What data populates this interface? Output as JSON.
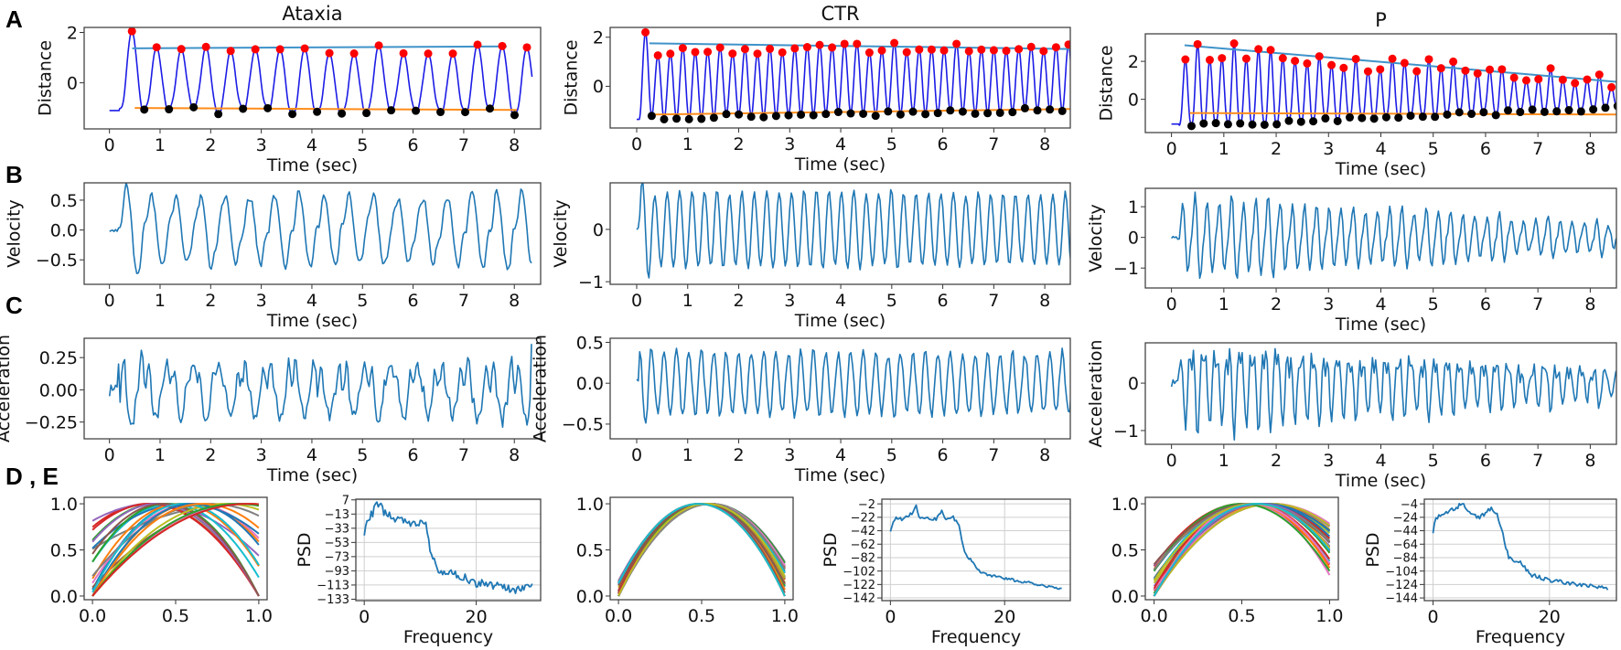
{
  "figure": {
    "panel_letters": {
      "A": "A",
      "B": "B",
      "C": "C",
      "DE": "D , E"
    }
  },
  "chart_data": [
    {
      "title": "Ataxia",
      "distance": {
        "type": "line",
        "xlabel": "Time (sec)",
        "ylabel": "Distance",
        "xlim": [
          -0.5,
          8.52
        ],
        "ylim": [
          -1.83,
          2.2
        ],
        "xticks": [
          0,
          1,
          2,
          3,
          4,
          5,
          6,
          7,
          8
        ],
        "xtick_labels": [
          "0",
          "1",
          "2",
          "3",
          "4",
          "5",
          "6",
          "7",
          "8"
        ],
        "yticks": [
          0,
          2
        ],
        "ytick_labels": [
          "0",
          "2"
        ],
        "signal": {
          "duration": 8.35,
          "onset": 0.2,
          "frequency": 2.05,
          "baseline": -1.1,
          "first_peak": 2.05,
          "peak": [
            1.4,
            1.35
          ],
          "peak_jitter": 0.22,
          "trough": [
            -1.1,
            -1.15
          ],
          "trough_jitter": 0.15,
          "shape": 1.3,
          "ripple": 0.08
        },
        "trend_upper": {
          "t": [
            0.45,
            7.85
          ],
          "y": [
            1.37,
            1.45
          ]
        },
        "trend_lower": {
          "t": [
            0.5,
            8.05
          ],
          "y": [
            -1.0,
            -1.08
          ]
        }
      },
      "velocity": {
        "type": "line",
        "xlabel": "Time (sec)",
        "ylabel": "Velocity",
        "xlim": [
          -0.5,
          8.52
        ],
        "ylim": [
          -0.91,
          0.79
        ],
        "xticks": [
          0,
          1,
          2,
          3,
          4,
          5,
          6,
          7,
          8
        ],
        "xtick_labels": [
          "0",
          "1",
          "2",
          "3",
          "4",
          "5",
          "6",
          "7",
          "8"
        ],
        "yticks": [
          -0.5,
          0,
          0.5
        ],
        "ytick_labels": [
          "−0.5",
          "0.0",
          "0.5"
        ],
        "peak_abs": 0.8,
        "noise": 0.04
      },
      "acceleration": {
        "type": "line",
        "xlabel": "Time (sec)",
        "ylabel": "Acceleration",
        "xlim": [
          -0.5,
          8.52
        ],
        "ylim": [
          -0.38,
          0.4
        ],
        "xticks": [
          0,
          1,
          2,
          3,
          4,
          5,
          6,
          7,
          8
        ],
        "xtick_labels": [
          "0",
          "1",
          "2",
          "3",
          "4",
          "5",
          "6",
          "7",
          "8"
        ],
        "yticks": [
          -0.25,
          0,
          0.25
        ],
        "ytick_labels": [
          "−0.25",
          "0.00",
          "0.25"
        ],
        "peak_abs": 0.36,
        "noise": 0.05
      },
      "mode_curves": {
        "type": "line",
        "xlim": [
          -0.05,
          1.05
        ],
        "ylim": [
          -0.04,
          1.07
        ],
        "xticks": [
          0,
          0.5,
          1
        ],
        "xtick_labels": [
          "0.0",
          "0.5",
          "1.0"
        ],
        "yticks": [
          0,
          0.5,
          1
        ],
        "ytick_labels": [
          "0.0",
          "0.5",
          "1.0"
        ],
        "count": 24,
        "center_range": [
          0.3,
          1.0
        ],
        "curvature_range": [
          0.6,
          4.0
        ]
      },
      "psd": {
        "type": "line",
        "xlabel": "Frequency",
        "ylabel": "PSD",
        "grid": true,
        "xlim": [
          -1.5,
          31.5
        ],
        "ylim": [
          -135,
          8
        ],
        "xticks": [
          0,
          20
        ],
        "xtick_labels": [
          "0",
          "20"
        ],
        "yticks": [
          7,
          -13,
          -33,
          -53,
          -73,
          -93,
          -113,
          -133
        ],
        "ytick_labels": [
          "7",
          "−13",
          "−33",
          "−53",
          "−73",
          "−93",
          "−113",
          "−133"
        ],
        "points": [
          [
            0,
            -40
          ],
          [
            0.5,
            -25
          ],
          [
            1,
            -18
          ],
          [
            2.5,
            3
          ],
          [
            4,
            -15
          ],
          [
            6,
            -20
          ],
          [
            8,
            -25
          ],
          [
            10,
            -25
          ],
          [
            11,
            -30
          ],
          [
            11.7,
            -60
          ],
          [
            12.3,
            -75
          ],
          [
            13,
            -95
          ],
          [
            16,
            -95
          ],
          [
            20,
            -110
          ],
          [
            24,
            -115
          ],
          [
            27,
            -120
          ],
          [
            30,
            -115
          ]
        ],
        "noise": 6
      }
    },
    {
      "title": "CTR",
      "distance": {
        "type": "line",
        "xlabel": "Time (sec)",
        "ylabel": "Distance",
        "xlim": [
          -0.52,
          8.5
        ],
        "ylim": [
          -1.7,
          2.4
        ],
        "xticks": [
          0,
          1,
          2,
          3,
          4,
          5,
          6,
          7,
          8
        ],
        "xtick_labels": [
          "0",
          "1",
          "2",
          "3",
          "4",
          "5",
          "6",
          "7",
          "8"
        ],
        "yticks": [
          0,
          2
        ],
        "ytick_labels": [
          "0",
          "2"
        ],
        "signal": {
          "duration": 8.6,
          "onset": 0.05,
          "frequency": 4.1,
          "baseline": -1.35,
          "first_peak": 2.2,
          "peak": [
            1.45,
            1.65
          ],
          "peak_jitter": 0.2,
          "trough": [
            -1.3,
            -0.95
          ],
          "trough_jitter": 0.1,
          "shape": 1.0,
          "ripple": 0
        },
        "trend_upper": {
          "t": [
            0.25,
            8.5
          ],
          "y": [
            1.75,
            1.52
          ]
        },
        "trend_lower": {
          "t": [
            0.35,
            8.5
          ],
          "y": [
            -1.15,
            -0.93
          ]
        }
      },
      "velocity": {
        "type": "line",
        "xlabel": "Time (sec)",
        "ylabel": "Velocity",
        "xlim": [
          -0.52,
          8.5
        ],
        "ylim": [
          -1.05,
          0.89
        ],
        "xticks": [
          0,
          1,
          2,
          3,
          4,
          5,
          6,
          7,
          8
        ],
        "xtick_labels": [
          "0",
          "1",
          "2",
          "3",
          "4",
          "5",
          "6",
          "7",
          "8"
        ],
        "yticks": [
          -1,
          0
        ],
        "ytick_labels": [
          "−1",
          "0"
        ],
        "peak_abs": 0.95,
        "noise": 0.03
      },
      "acceleration": {
        "type": "line",
        "xlabel": "Time (sec)",
        "ylabel": "Acceleration",
        "xlim": [
          -0.52,
          8.5
        ],
        "ylim": [
          -0.68,
          0.55
        ],
        "xticks": [
          0,
          1,
          2,
          3,
          4,
          5,
          6,
          7,
          8
        ],
        "xtick_labels": [
          "0",
          "1",
          "2",
          "3",
          "4",
          "5",
          "6",
          "7",
          "8"
        ],
        "yticks": [
          -0.5,
          0,
          0.5
        ],
        "ytick_labels": [
          "−0.5",
          "0.0",
          "0.5"
        ],
        "peak_abs": 0.5,
        "noise": 0.05
      },
      "mode_curves": {
        "type": "line",
        "xlim": [
          -0.05,
          1.05
        ],
        "ylim": [
          -0.04,
          1.07
        ],
        "xticks": [
          0,
          0.5,
          1
        ],
        "xtick_labels": [
          "0.0",
          "0.5",
          "1.0"
        ],
        "yticks": [
          0,
          0.5,
          1
        ],
        "ytick_labels": [
          "0.0",
          "0.5",
          "1.0"
        ],
        "count": 40,
        "center_range": [
          0.48,
          0.56
        ],
        "curvature_range": [
          3.3,
          4.2
        ]
      },
      "psd": {
        "type": "line",
        "xlabel": "Frequency",
        "ylabel": "PSD",
        "grid": true,
        "xlim": [
          -1.5,
          31.5
        ],
        "ylim": [
          -146,
          5
        ],
        "xticks": [
          0,
          20
        ],
        "xtick_labels": [
          "0",
          "20"
        ],
        "yticks": [
          -2,
          -22,
          -42,
          -62,
          -82,
          -102,
          -122,
          -142
        ],
        "ytick_labels": [
          "−2",
          "−22",
          "−42",
          "−62",
          "−82",
          "−102",
          "−122",
          "−142"
        ],
        "points": [
          [
            0,
            -45
          ],
          [
            0.5,
            -30
          ],
          [
            1,
            -22
          ],
          [
            2,
            -25
          ],
          [
            4,
            -15
          ],
          [
            4.5,
            -3
          ],
          [
            5,
            -22
          ],
          [
            8,
            -25
          ],
          [
            9,
            -12
          ],
          [
            9.5,
            -25
          ],
          [
            11,
            -22
          ],
          [
            12,
            -35
          ],
          [
            13,
            -75
          ],
          [
            14,
            -85
          ],
          [
            15,
            -95
          ],
          [
            16,
            -105
          ],
          [
            20,
            -113
          ],
          [
            30,
            -128
          ]
        ],
        "noise": 2
      }
    },
    {
      "title": "P",
      "distance": {
        "type": "line",
        "xlabel": "Time (sec)",
        "ylabel": "Distance",
        "xlim": [
          -0.5,
          8.5
        ],
        "ylim": [
          -1.75,
          3.45
        ],
        "xticks": [
          0,
          1,
          2,
          3,
          4,
          5,
          6,
          7,
          8
        ],
        "xtick_labels": [
          "0",
          "1",
          "2",
          "3",
          "4",
          "5",
          "6",
          "7",
          "8"
        ],
        "yticks": [
          0,
          2
        ],
        "ytick_labels": [
          "0",
          "2"
        ],
        "signal": {
          "duration": 8.6,
          "onset": 0.15,
          "frequency": 4.3,
          "baseline": -1.3,
          "first_peak": 2.1,
          "peak": [
            2.7,
            1.0
          ],
          "peak_jitter": 0.5,
          "trough": [
            -1.45,
            -0.45
          ],
          "trough_jitter": 0.12,
          "shape": 1.4,
          "ripple": 0.1
        },
        "trend_upper": {
          "t": [
            0.25,
            8.5
          ],
          "y": [
            2.85,
            0.92
          ]
        },
        "trend_lower": {
          "t": [
            0.35,
            8.5
          ],
          "y": [
            -0.72,
            -0.8
          ]
        }
      },
      "velocity": {
        "type": "line",
        "xlabel": "Time (sec)",
        "ylabel": "Velocity",
        "xlim": [
          -0.5,
          8.5
        ],
        "ylim": [
          -1.65,
          1.6
        ],
        "xticks": [
          0,
          1,
          2,
          3,
          4,
          5,
          6,
          7,
          8
        ],
        "xtick_labels": [
          "0",
          "1",
          "2",
          "3",
          "4",
          "5",
          "6",
          "7",
          "8"
        ],
        "yticks": [
          -1,
          0,
          1
        ],
        "ytick_labels": [
          "−1",
          "0",
          "1"
        ],
        "peak_abs": 1.45,
        "noise": 0.06
      },
      "acceleration": {
        "type": "line",
        "xlabel": "Time (sec)",
        "ylabel": "Acceleration",
        "xlim": [
          -0.5,
          8.5
        ],
        "ylim": [
          -1.29,
          0.85
        ],
        "xticks": [
          0,
          1,
          2,
          3,
          4,
          5,
          6,
          7,
          8
        ],
        "xtick_labels": [
          "0",
          "1",
          "2",
          "3",
          "4",
          "5",
          "6",
          "7",
          "8"
        ],
        "yticks": [
          -1,
          0
        ],
        "ytick_labels": [
          "−1",
          "0"
        ],
        "peak_abs": 1.15,
        "noise": 0.08
      },
      "mode_curves": {
        "type": "line",
        "xlim": [
          -0.05,
          1.05
        ],
        "ylim": [
          -0.04,
          1.07
        ],
        "xticks": [
          0,
          0.5,
          1
        ],
        "xtick_labels": [
          "0.0",
          "0.5",
          "1.0"
        ],
        "yticks": [
          0,
          0.5,
          1
        ],
        "ytick_labels": [
          "0.0",
          "0.5",
          "1.0"
        ],
        "count": 40,
        "center_range": [
          0.5,
          0.68
        ],
        "curvature_range": [
          2.0,
          4.0
        ]
      },
      "psd": {
        "type": "line",
        "xlabel": "Frequency",
        "ylabel": "PSD",
        "grid": true,
        "xlim": [
          -1.5,
          31.5
        ],
        "ylim": [
          -148,
          3
        ],
        "xticks": [
          0,
          20
        ],
        "xtick_labels": [
          "0",
          "20"
        ],
        "yticks": [
          -4,
          -24,
          -44,
          -64,
          -84,
          -104,
          -124,
          -144
        ],
        "ytick_labels": [
          "−4",
          "−24",
          "−44",
          "−64",
          "−84",
          "−104",
          "−124",
          "−144"
        ],
        "points": [
          [
            0,
            -45
          ],
          [
            0.5,
            -25
          ],
          [
            2,
            -18
          ],
          [
            4,
            -10
          ],
          [
            5,
            -2
          ],
          [
            6,
            -15
          ],
          [
            8,
            -25
          ],
          [
            10,
            -10
          ],
          [
            11,
            -20
          ],
          [
            12,
            -50
          ],
          [
            13,
            -85
          ],
          [
            15,
            -92
          ],
          [
            17,
            -110
          ],
          [
            20,
            -118
          ],
          [
            30,
            -130
          ]
        ],
        "noise": 3
      }
    }
  ],
  "colors": {
    "distance_line": "#1c1ce6",
    "signal_line": "#1f77b4",
    "trend_upper": "#3f93c9",
    "trend_lower": "#ff8c1a",
    "peak_marker": "#ff0000",
    "trough_marker": "#000000",
    "grid": "#cfcfcf",
    "frame": "#444444",
    "cycle": [
      "#1f77b4",
      "#ff7f0e",
      "#2ca02c",
      "#d62728",
      "#9467bd",
      "#8c564b",
      "#e377c2",
      "#7f7f7f",
      "#bcbd22",
      "#17becf"
    ]
  }
}
